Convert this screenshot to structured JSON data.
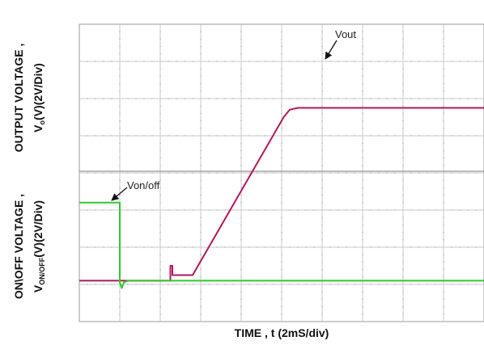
{
  "chart_data": {
    "type": "line",
    "title": "",
    "xlabel": "TIME , t (2mS/div)",
    "ylabel_upper": {
      "line1": "OUTPUT VOLTAGE  ,",
      "line2_main": "V",
      "line2_sub": "o",
      "line2_rest": "(V)(2V/Div)"
    },
    "ylabel_lower": {
      "line1": "ON\\OFF VOLTAGE ,",
      "line2_main": "V",
      "line2_sub": "ON/OFF",
      "line2_rest": "(V)(2V/Div)"
    },
    "x_divisions": 10,
    "y_divisions": 8,
    "xlim": [
      0,
      10
    ],
    "ylim": [
      0,
      8
    ],
    "grid": true,
    "x_units": "divisions (2 mS/div)",
    "y_units": "divisions (2 V/div)",
    "series": [
      {
        "name": "Vout",
        "color": "#b0185f",
        "x": [
          0,
          2.25,
          2.25,
          2.3,
          2.3,
          2.8,
          5.05,
          5.2,
          5.4,
          10
        ],
        "y": [
          1.1,
          1.1,
          1.5,
          1.5,
          1.25,
          1.25,
          5.5,
          5.7,
          5.75,
          5.75
        ]
      },
      {
        "name": "Von/off",
        "color": "#2ec92e",
        "x": [
          0,
          1.0,
          1.0,
          1.05,
          1.1,
          1.2,
          10
        ],
        "y": [
          3.2,
          3.2,
          1.05,
          0.9,
          1.05,
          1.1,
          1.1
        ]
      }
    ],
    "annotations": [
      {
        "text": "Vout",
        "series": "Vout"
      },
      {
        "text": "Von/off",
        "series": "Von/off"
      }
    ]
  }
}
